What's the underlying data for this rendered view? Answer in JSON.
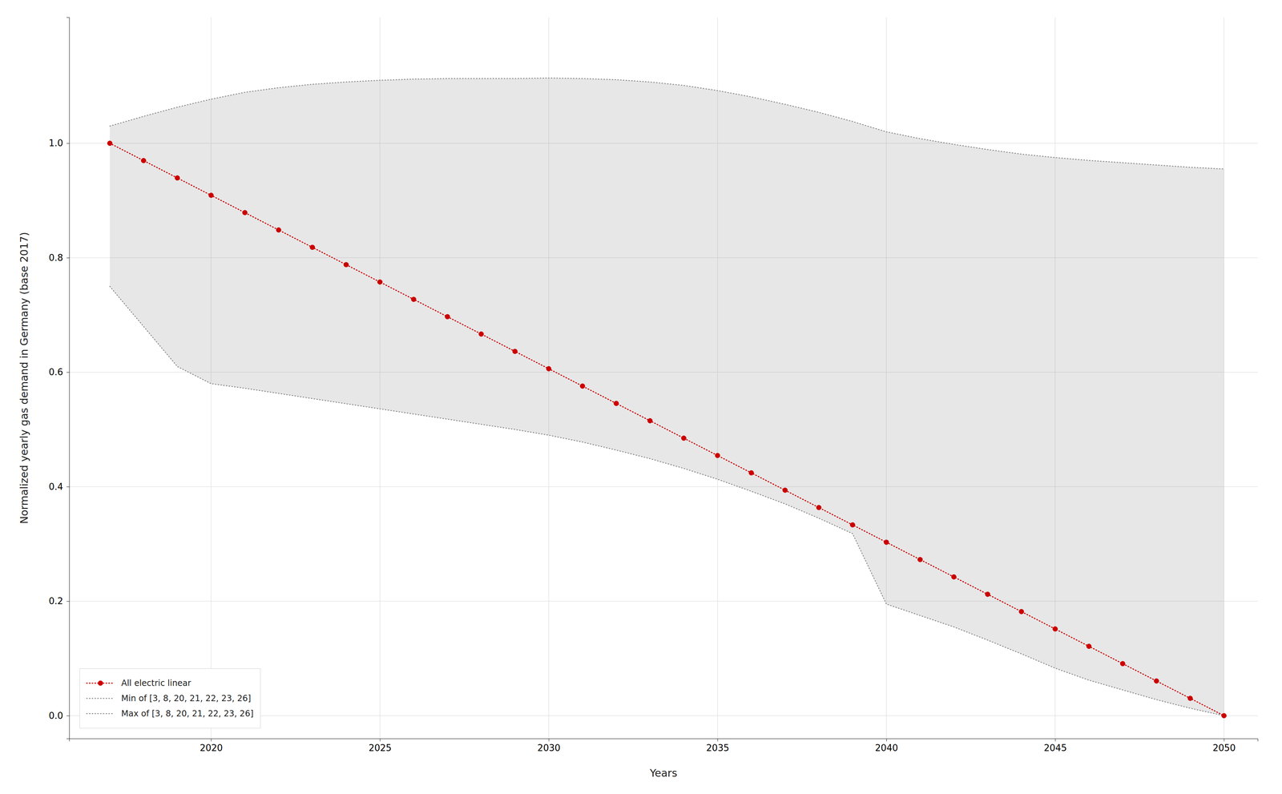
{
  "chart_data": {
    "type": "line",
    "xlabel": "Years",
    "ylabel": "Normalized yearly gas demand in Germany (base 2017)",
    "x": [
      2017,
      2018,
      2019,
      2020,
      2021,
      2022,
      2023,
      2024,
      2025,
      2026,
      2027,
      2028,
      2029,
      2030,
      2031,
      2032,
      2033,
      2034,
      2035,
      2036,
      2037,
      2038,
      2039,
      2040,
      2041,
      2042,
      2043,
      2044,
      2045,
      2046,
      2047,
      2048,
      2049,
      2050
    ],
    "series": [
      {
        "name": "All electric linear",
        "color": "#cc0000",
        "line_style": "dotted",
        "marker": "circle",
        "values": [
          1.0,
          0.9697,
          0.9394,
          0.9091,
          0.8788,
          0.8485,
          0.8182,
          0.7879,
          0.7576,
          0.7273,
          0.697,
          0.6667,
          0.6364,
          0.6061,
          0.5758,
          0.5455,
          0.5152,
          0.4848,
          0.4545,
          0.4242,
          0.3939,
          0.3636,
          0.3333,
          0.303,
          0.2727,
          0.2424,
          0.2121,
          0.1818,
          0.1515,
          0.1212,
          0.0909,
          0.0606,
          0.0303,
          0.0
        ]
      },
      {
        "name": "Min of [3, 8, 20, 21, 22, 23, 26]",
        "color": "#888888",
        "line_style": "dotted",
        "values": [
          0.75,
          0.68,
          0.61,
          0.58,
          0.572,
          0.563,
          0.554,
          0.545,
          0.536,
          0.527,
          0.518,
          0.509,
          0.5,
          0.49,
          0.478,
          0.464,
          0.449,
          0.432,
          0.413,
          0.392,
          0.37,
          0.345,
          0.318,
          0.195,
          0.175,
          0.155,
          0.132,
          0.108,
          0.083,
          0.062,
          0.045,
          0.028,
          0.013,
          0.0
        ]
      },
      {
        "name": "Max of [3, 8, 20, 21, 22, 23, 26]",
        "color": "#888888",
        "line_style": "dotted",
        "values": [
          1.03,
          1.047,
          1.063,
          1.077,
          1.089,
          1.097,
          1.103,
          1.107,
          1.11,
          1.112,
          1.113,
          1.113,
          1.113,
          1.114,
          1.113,
          1.111,
          1.107,
          1.101,
          1.092,
          1.081,
          1.068,
          1.054,
          1.038,
          1.02,
          1.008,
          0.998,
          0.989,
          0.981,
          0.975,
          0.97,
          0.966,
          0.962,
          0.958,
          0.955
        ]
      }
    ],
    "xlim": [
      2015.8,
      2051.0
    ],
    "ylim": [
      -0.04,
      1.22
    ],
    "xticks": [
      2020,
      2025,
      2030,
      2035,
      2040,
      2045,
      2050
    ],
    "yticks": [
      {
        "value": 0.0,
        "label": "0.0"
      },
      0.2,
      0.4,
      0.6,
      0.8,
      {
        "value": 1.0,
        "label": "1.0"
      }
    ],
    "grid": true,
    "legend": "lower left"
  }
}
